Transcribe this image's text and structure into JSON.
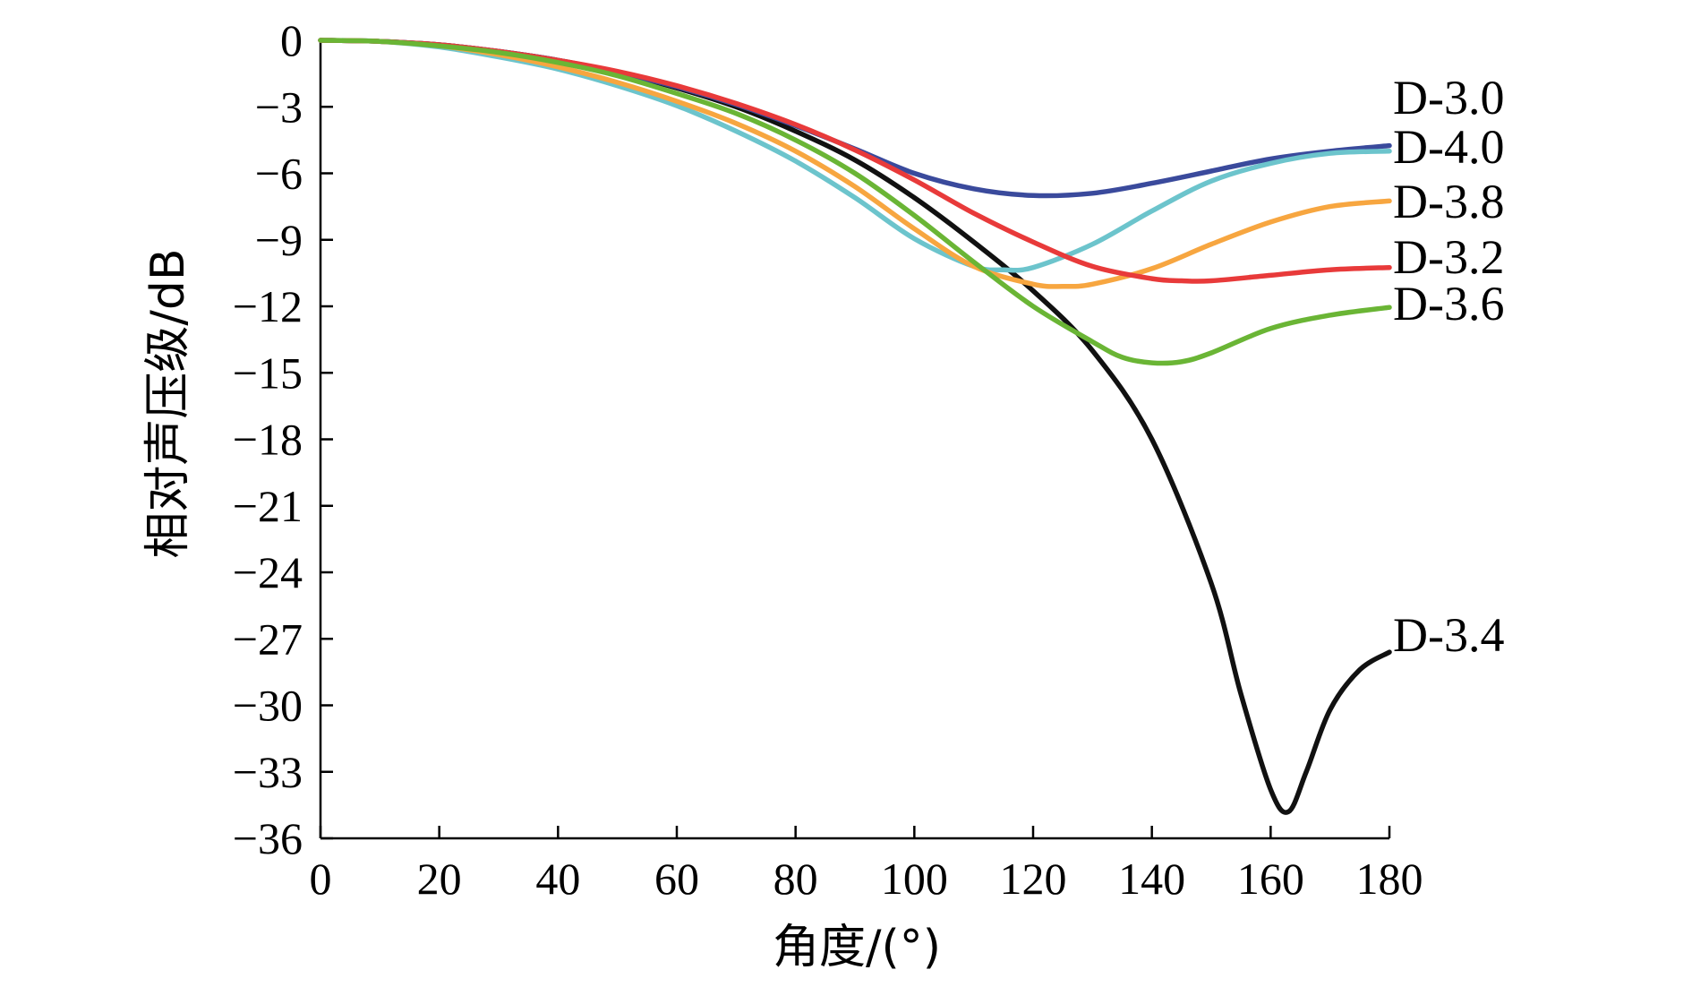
{
  "chart_data": {
    "type": "line",
    "title": "",
    "xlabel": "角度/(°)",
    "ylabel": "相对声压级/dB",
    "xlim": [
      0,
      180
    ],
    "ylim": [
      -36,
      0
    ],
    "xticks": [
      0,
      20,
      40,
      60,
      80,
      100,
      120,
      140,
      160,
      180
    ],
    "yticks": [
      0,
      -3,
      -6,
      -9,
      -12,
      -15,
      -18,
      -21,
      -24,
      -27,
      -30,
      -33,
      -36
    ],
    "ytick_labels": [
      "0",
      "−3",
      "−6",
      "−9",
      "−12",
      "−15",
      "−18",
      "−21",
      "−24",
      "−27",
      "−30",
      "−33",
      "−36"
    ],
    "grid": false,
    "series": [
      {
        "name": "D-3.0",
        "color": "#3a4a9c",
        "x": [
          0,
          10,
          20,
          30,
          40,
          50,
          60,
          70,
          80,
          90,
          100,
          110,
          120,
          130,
          140,
          150,
          160,
          170,
          180
        ],
        "y": [
          0,
          -0.05,
          -0.2,
          -0.5,
          -0.9,
          -1.45,
          -2.1,
          -2.9,
          -3.85,
          -4.9,
          -6.0,
          -6.7,
          -7.0,
          -6.9,
          -6.45,
          -5.9,
          -5.35,
          -5.0,
          -4.75
        ]
      },
      {
        "name": "D-4.0",
        "color": "#6cc4cc",
        "x": [
          0,
          10,
          20,
          30,
          40,
          50,
          60,
          70,
          80,
          90,
          100,
          110,
          115,
          120,
          130,
          140,
          150,
          160,
          170,
          180
        ],
        "y": [
          0,
          -0.05,
          -0.3,
          -0.75,
          -1.3,
          -2.05,
          -2.95,
          -4.1,
          -5.45,
          -7.1,
          -8.95,
          -10.2,
          -10.35,
          -10.25,
          -9.2,
          -7.7,
          -6.35,
          -5.55,
          -5.1,
          -5.0
        ]
      },
      {
        "name": "D-3.8",
        "color": "#f7a640",
        "x": [
          0,
          10,
          20,
          30,
          40,
          50,
          60,
          70,
          80,
          90,
          100,
          110,
          120,
          125,
          130,
          140,
          150,
          160,
          170,
          180
        ],
        "y": [
          0,
          -0.05,
          -0.25,
          -0.65,
          -1.2,
          -1.9,
          -2.75,
          -3.75,
          -5.0,
          -6.6,
          -8.5,
          -10.2,
          -11.0,
          -11.1,
          -11.0,
          -10.3,
          -9.2,
          -8.2,
          -7.5,
          -7.25
        ]
      },
      {
        "name": "D-3.2",
        "color": "#e83a3a",
        "x": [
          0,
          10,
          20,
          30,
          40,
          50,
          60,
          70,
          80,
          90,
          100,
          110,
          120,
          130,
          140,
          145,
          150,
          160,
          170,
          180
        ],
        "y": [
          0,
          -0.05,
          -0.2,
          -0.5,
          -0.9,
          -1.4,
          -2.05,
          -2.85,
          -3.8,
          -4.95,
          -6.3,
          -7.8,
          -9.1,
          -10.2,
          -10.75,
          -10.85,
          -10.85,
          -10.6,
          -10.35,
          -10.25
        ]
      },
      {
        "name": "D-3.6",
        "color": "#6ab535",
        "x": [
          0,
          10,
          20,
          30,
          40,
          50,
          60,
          70,
          80,
          90,
          100,
          110,
          120,
          130,
          135,
          140,
          145,
          150,
          160,
          170,
          180
        ],
        "y": [
          0,
          -0.05,
          -0.25,
          -0.55,
          -1.0,
          -1.6,
          -2.4,
          -3.3,
          -4.5,
          -6.0,
          -7.9,
          -10.0,
          -12.0,
          -13.6,
          -14.3,
          -14.55,
          -14.5,
          -14.1,
          -13.0,
          -12.4,
          -12.05
        ]
      },
      {
        "name": "D-3.4",
        "color": "#111111",
        "x": [
          0,
          10,
          20,
          30,
          40,
          50,
          60,
          70,
          80,
          90,
          100,
          110,
          120,
          130,
          140,
          150,
          155,
          160,
          163,
          166,
          170,
          175,
          180
        ],
        "y": [
          0,
          -0.05,
          -0.2,
          -0.5,
          -0.9,
          -1.45,
          -2.15,
          -3.0,
          -4.1,
          -5.4,
          -7.1,
          -9.1,
          -11.3,
          -14.0,
          -18.0,
          -24.5,
          -29.5,
          -33.8,
          -34.8,
          -33.0,
          -30.2,
          -28.4,
          -27.6
        ]
      }
    ]
  }
}
